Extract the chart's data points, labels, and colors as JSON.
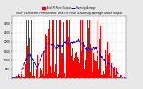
{
  "title": "Solar PV/Inverter Performance Total PV Panel & Running Average Power Output",
  "bg_color": "#e8e8e8",
  "plot_bg": "#ffffff",
  "grid_color": "#aaaaaa",
  "bar_color": "#ff0000",
  "avg_color": "#0000cc",
  "n_points": 700,
  "peak_value": 3200,
  "ylim": [
    0,
    3400
  ],
  "yticks": [
    500,
    1000,
    1500,
    2000,
    2500,
    3000
  ],
  "legend_labels": [
    "Total PV Panel Output",
    "Running Average"
  ],
  "figsize": [
    1.6,
    1.0
  ],
  "dpi": 100
}
